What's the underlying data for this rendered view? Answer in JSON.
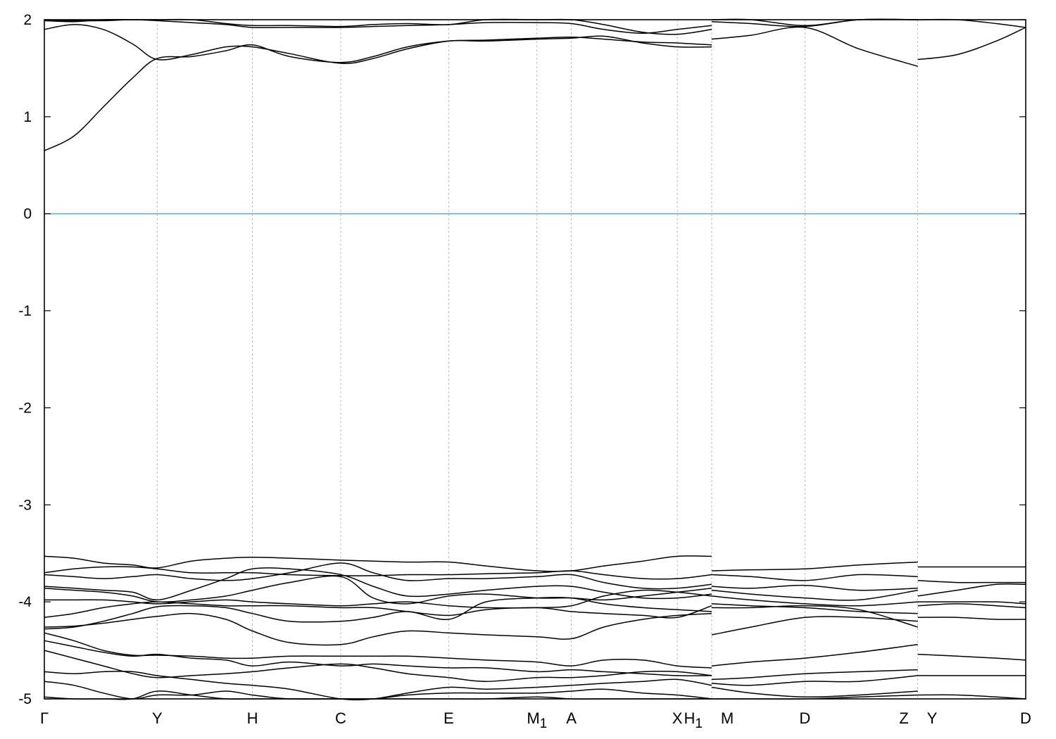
{
  "chart_data": {
    "type": "line",
    "title": "",
    "xlabel": "",
    "ylabel": "",
    "ylim": [
      -5,
      2
    ],
    "yticks": [
      2,
      1,
      0,
      -1,
      -2,
      -3,
      -4,
      -5
    ],
    "kpoints": [
      {
        "label": "Γ",
        "sub": "",
        "x": 0
      },
      {
        "label": "Y",
        "sub": "",
        "x": 1.15
      },
      {
        "label": "H",
        "sub": "",
        "x": 2.12
      },
      {
        "label": "C",
        "sub": "",
        "x": 3.02
      },
      {
        "label": "E",
        "sub": "",
        "x": 4.12
      },
      {
        "label": "M",
        "sub": "1",
        "x": 5.02
      },
      {
        "label": "A",
        "sub": "",
        "x": 5.37
      },
      {
        "label": "X",
        "sub": "",
        "x": 6.45
      },
      {
        "label": "H",
        "sub": "1",
        "x": 6.8
      },
      {
        "label": "M",
        "sub": "",
        "x": 6.8
      },
      {
        "label": "D",
        "sub": "",
        "x": 7.75
      },
      {
        "label": "Z",
        "sub": "",
        "x": 8.9
      },
      {
        "label": "Y",
        "sub": "",
        "x": 8.9
      },
      {
        "label": "D",
        "sub": "",
        "x": 10
      }
    ],
    "fermi_level": 0,
    "fermi_color": "#5fb3c6",
    "line_color": "#000000",
    "segments": [
      {
        "from": 0,
        "to": 6.8,
        "x": [
          0,
          0.3,
          0.6,
          0.9,
          1.15,
          1.5,
          1.85,
          2.12,
          2.5,
          3.02,
          3.35,
          3.7,
          4.12,
          4.5,
          5.02,
          5.37,
          5.7,
          6.1,
          6.45,
          6.8
        ],
        "bands": [
          [
            0.65,
            0.8,
            1.1,
            1.4,
            1.6,
            1.62,
            1.68,
            1.74,
            1.62,
            1.56,
            1.62,
            1.72,
            1.78,
            1.79,
            1.81,
            1.82,
            1.8,
            1.77,
            1.76,
            1.74
          ],
          [
            1.9,
            1.95,
            1.9,
            1.75,
            1.59,
            1.64,
            1.72,
            1.72,
            1.65,
            1.55,
            1.6,
            1.7,
            1.78,
            1.78,
            1.8,
            1.81,
            1.83,
            1.76,
            1.72,
            1.72
          ],
          [
            1.99,
            1.99,
            1.99,
            2.0,
            1.99,
            1.97,
            1.95,
            1.92,
            1.92,
            1.92,
            1.93,
            1.94,
            1.95,
            1.97,
            1.97,
            1.96,
            1.9,
            1.86,
            1.9,
            1.94
          ],
          [
            1.99,
            1.98,
            2.0,
            2.0,
            2.0,
            2.0,
            1.96,
            1.94,
            1.94,
            1.93,
            1.95,
            1.96,
            1.95,
            2.0,
            2.0,
            2.0,
            1.95,
            1.87,
            1.85,
            1.9
          ],
          [
            -3.53,
            -3.55,
            -3.6,
            -3.62,
            -3.65,
            -3.58,
            -3.55,
            -3.54,
            -3.55,
            -3.57,
            -3.58,
            -3.59,
            -3.59,
            -3.63,
            -3.68,
            -3.68,
            -3.63,
            -3.58,
            -3.53,
            -3.53
          ],
          [
            -3.7,
            -3.66,
            -3.64,
            -3.64,
            -3.66,
            -3.7,
            -3.7,
            -3.7,
            -3.72,
            -3.73,
            -3.73,
            -3.72,
            -3.72,
            -3.71,
            -3.7,
            -3.68,
            -3.72,
            -3.76,
            -3.76,
            -3.72
          ],
          [
            -3.72,
            -3.74,
            -3.76,
            -3.74,
            -3.72,
            -3.76,
            -3.78,
            -3.76,
            -3.7,
            -3.6,
            -3.7,
            -3.78,
            -3.76,
            -3.76,
            -3.74,
            -3.72,
            -3.8,
            -3.86,
            -3.86,
            -3.82
          ],
          [
            -3.84,
            -3.86,
            -3.88,
            -3.9,
            -3.98,
            -3.88,
            -3.76,
            -3.66,
            -3.66,
            -3.72,
            -3.84,
            -3.94,
            -3.92,
            -3.88,
            -3.84,
            -3.84,
            -3.9,
            -3.96,
            -3.96,
            -3.92
          ],
          [
            -3.86,
            -3.88,
            -3.9,
            -3.94,
            -4.0,
            -3.98,
            -3.94,
            -3.88,
            -3.8,
            -3.74,
            -3.96,
            -4.02,
            -3.94,
            -3.92,
            -3.96,
            -3.96,
            -3.98,
            -3.94,
            -3.9,
            -3.86
          ],
          [
            -3.98,
            -3.98,
            -3.98,
            -4.0,
            -4.02,
            -4.0,
            -3.98,
            -4.0,
            -4.02,
            -4.04,
            -4.02,
            -4.0,
            -4.04,
            -4.06,
            -4.06,
            -4.04,
            -3.94,
            -3.88,
            -3.9,
            -3.94
          ],
          [
            -4.16,
            -4.12,
            -4.06,
            -4.02,
            -4.0,
            -4.02,
            -4.04,
            -4.04,
            -4.04,
            -4.06,
            -4.06,
            -4.1,
            -4.14,
            -4.08,
            -4.06,
            -4.1,
            -4.12,
            -4.14,
            -4.16,
            -4.04
          ],
          [
            -4.28,
            -4.26,
            -4.2,
            -4.12,
            -4.05,
            -4.04,
            -4.06,
            -4.12,
            -4.2,
            -4.2,
            -4.16,
            -4.1,
            -4.18,
            -4.0,
            -3.96,
            -3.96,
            -4.02,
            -4.06,
            -4.08,
            -4.1
          ],
          [
            -4.26,
            -4.25,
            -4.22,
            -4.18,
            -4.15,
            -4.12,
            -4.18,
            -4.3,
            -4.42,
            -4.44,
            -4.36,
            -4.3,
            -4.32,
            -4.34,
            -4.36,
            -4.38,
            -4.26,
            -4.18,
            -4.14,
            -4.12
          ],
          [
            -4.32,
            -4.4,
            -4.5,
            -4.55,
            -4.55,
            -4.56,
            -4.58,
            -4.58,
            -4.56,
            -4.56,
            -4.56,
            -4.56,
            -4.58,
            -4.6,
            -4.62,
            -4.66,
            -4.6,
            -4.6,
            -4.66,
            -4.68
          ],
          [
            -4.4,
            -4.46,
            -4.52,
            -4.56,
            -4.54,
            -4.58,
            -4.6,
            -4.66,
            -4.62,
            -4.66,
            -4.64,
            -4.66,
            -4.68,
            -4.68,
            -4.72,
            -4.7,
            -4.72,
            -4.74,
            -4.76,
            -4.76
          ],
          [
            -4.5,
            -4.58,
            -4.66,
            -4.74,
            -4.78,
            -4.76,
            -4.74,
            -4.72,
            -4.68,
            -4.64,
            -4.68,
            -4.74,
            -4.78,
            -4.82,
            -4.78,
            -4.78,
            -4.76,
            -4.72,
            -4.72,
            -4.76
          ],
          [
            -4.72,
            -4.74,
            -4.72,
            -4.72,
            -4.76,
            -4.8,
            -4.84,
            -4.86,
            -4.9,
            -5.0,
            -5.0,
            -4.94,
            -4.88,
            -4.9,
            -4.88,
            -4.86,
            -4.84,
            -4.82,
            -4.8,
            -4.86
          ],
          [
            -4.82,
            -4.86,
            -4.94,
            -5.0,
            -4.96,
            -4.96,
            -4.92,
            -4.96,
            -5.0,
            -5.0,
            -5.0,
            -4.96,
            -4.94,
            -4.94,
            -4.94,
            -4.92,
            -4.9,
            -4.94,
            -4.96,
            -5.0
          ],
          [
            -4.98,
            -5.0,
            -5.0,
            -5.0,
            -4.92,
            -4.96,
            -5.0,
            -5.0,
            -5.0,
            -5.0,
            -5.0,
            -5.0,
            -5.0,
            -5.0,
            -4.98,
            -5.0,
            -5.0,
            -5.0,
            -5.0,
            -5.0
          ]
        ]
      },
      {
        "from": 6.8,
        "to": 8.9,
        "x": [
          6.8,
          7.2,
          7.75,
          8.3,
          8.9
        ],
        "bands": [
          [
            1.8,
            1.84,
            1.92,
            1.7,
            1.52
          ],
          [
            1.98,
            1.96,
            1.93,
            2.0,
            2.0
          ],
          [
            2.0,
            2.0,
            1.94,
            2.0,
            2.0
          ],
          [
            -3.68,
            -3.67,
            -3.66,
            -3.62,
            -3.59
          ],
          [
            -3.72,
            -3.74,
            -3.78,
            -3.72,
            -3.74
          ],
          [
            -3.84,
            -3.86,
            -3.83,
            -3.88,
            -3.86
          ],
          [
            -3.88,
            -3.92,
            -3.96,
            -3.98,
            -3.88
          ],
          [
            -3.94,
            -3.98,
            -4.02,
            -4.04,
            -4.0
          ],
          [
            -4.02,
            -4.04,
            -4.06,
            -4.1,
            -4.12
          ],
          [
            -4.06,
            -4.06,
            -4.04,
            -4.08,
            -4.26
          ],
          [
            -4.34,
            -4.26,
            -4.16,
            -4.16,
            -4.2
          ],
          [
            -4.66,
            -4.62,
            -4.58,
            -4.52,
            -4.44
          ],
          [
            -4.8,
            -4.78,
            -4.74,
            -4.72,
            -4.7
          ],
          [
            -4.84,
            -4.86,
            -4.82,
            -4.82,
            -4.76
          ],
          [
            -4.88,
            -4.94,
            -4.98,
            -4.96,
            -4.92
          ],
          [
            -5.0,
            -5.0,
            -5.0,
            -4.98,
            -4.96
          ]
        ]
      },
      {
        "from": 8.9,
        "to": 10,
        "x": [
          8.9,
          9.3,
          9.7,
          10
        ],
        "bands": [
          [
            1.59,
            1.64,
            1.78,
            1.92
          ],
          [
            2.0,
            2.0,
            1.96,
            1.92
          ],
          [
            -3.64,
            -3.64,
            -3.64,
            -3.64
          ],
          [
            -3.94,
            -3.88,
            -3.82,
            -3.82
          ],
          [
            -3.78,
            -3.8,
            -3.8,
            -3.8
          ],
          [
            -4.0,
            -4.0,
            -4.0,
            -4.02
          ],
          [
            -4.04,
            -4.02,
            -4.04,
            -4.06
          ],
          [
            -4.16,
            -4.16,
            -4.18,
            -4.18
          ],
          [
            -4.54,
            -4.56,
            -4.58,
            -4.6
          ],
          [
            -4.76,
            -4.76,
            -4.76,
            -4.76
          ],
          [
            -4.96,
            -4.96,
            -4.98,
            -5.0
          ]
        ]
      }
    ]
  }
}
